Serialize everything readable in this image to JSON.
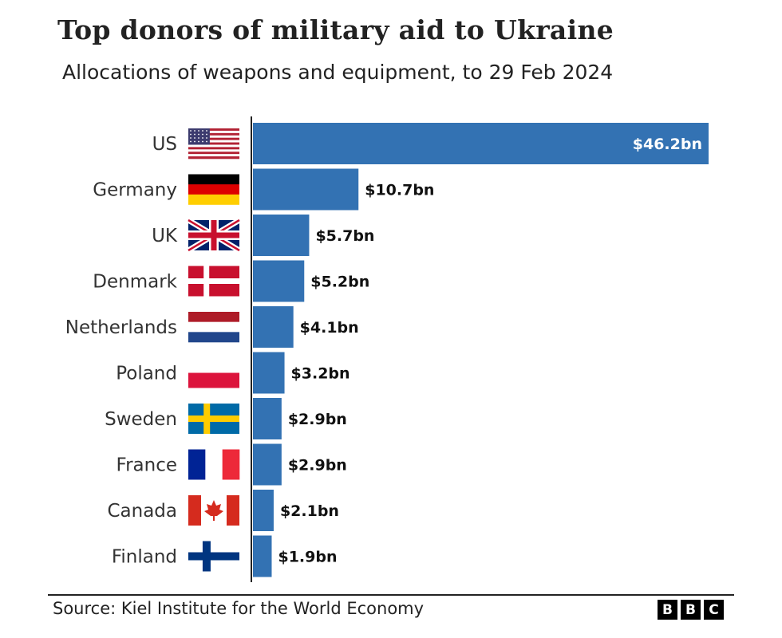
{
  "chart_data": {
    "type": "bar",
    "orientation": "horizontal",
    "title": "Top donors of military aid to Ukraine",
    "subtitle": "Allocations of weapons and equipment, to 29 Feb 2024",
    "categories": [
      "US",
      "Germany",
      "UK",
      "Denmark",
      "Netherlands",
      "Poland",
      "Sweden",
      "France",
      "Canada",
      "Finland"
    ],
    "values": [
      46.2,
      10.7,
      5.7,
      5.2,
      4.1,
      3.2,
      2.9,
      2.9,
      2.1,
      1.9
    ],
    "value_labels": [
      "$46.2bn",
      "$10.7bn",
      "$5.7bn",
      "$5.2bn",
      "$4.1bn",
      "$3.2bn",
      "$2.9bn",
      "$2.9bn",
      "$2.1bn",
      "$1.9bn"
    ],
    "flags": [
      "us-flag-icon",
      "germany-flag-icon",
      "uk-flag-icon",
      "denmark-flag-icon",
      "netherlands-flag-icon",
      "poland-flag-icon",
      "sweden-flag-icon",
      "france-flag-icon",
      "canada-flag-icon",
      "finland-flag-icon"
    ],
    "unit": "$bn",
    "xlim": [
      0,
      46.2
    ],
    "bar_color": "#3372b3",
    "grid": false
  },
  "footer": {
    "source": "Source: Kiel Institute for the World Economy",
    "logo": [
      "B",
      "B",
      "C"
    ]
  }
}
